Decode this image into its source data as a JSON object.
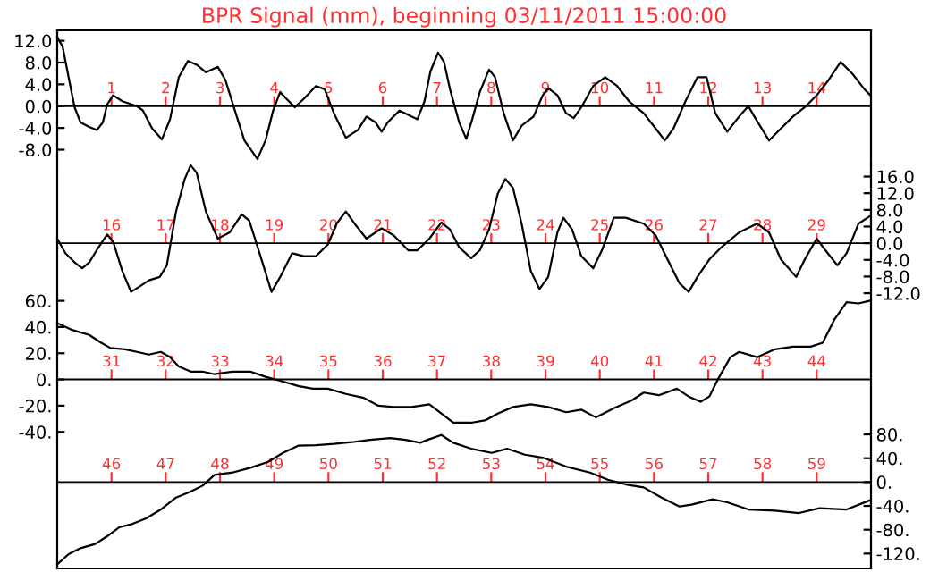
{
  "chart_data": [
    {
      "type": "line",
      "title": "BPR Signal (mm), beginning 03/11/2011 15:00:00",
      "xlim": [
        0,
        15
      ],
      "xticks": [
        1,
        2,
        3,
        4,
        5,
        6,
        7,
        8,
        9,
        10,
        11,
        12,
        13,
        14
      ],
      "ylim": [
        -10.7,
        13.9
      ],
      "yticks": [
        {
          "value": 12,
          "label": "12.0"
        },
        {
          "value": 8,
          "label": "8.0"
        },
        {
          "value": 4,
          "label": "4.0"
        },
        {
          "value": 0,
          "label": "0.0"
        },
        {
          "value": -4,
          "label": "-4.0"
        },
        {
          "value": -8,
          "label": "-8.0"
        }
      ],
      "series": [
        {
          "color": "#000000",
          "x": [
            0,
            0.1,
            0.21,
            0.32,
            0.43,
            0.59,
            0.73,
            0.84,
            0.92,
            1.03,
            1.2,
            1.47,
            1.58,
            1.75,
            1.93,
            2.08,
            2.24,
            2.41,
            2.57,
            2.74,
            2.96,
            3.1,
            3.29,
            3.45,
            3.69,
            3.84,
            3.98,
            4.11,
            4.22,
            4.38,
            4.55,
            4.77,
            4.93,
            5.1,
            5.32,
            5.54,
            5.7,
            5.87,
            5.98,
            6.09,
            6.31,
            6.53,
            6.64,
            6.77,
            6.88,
            7.02,
            7.13,
            7.24,
            7.41,
            7.54,
            7.65,
            7.79,
            7.96,
            8.07,
            8.23,
            8.4,
            8.56,
            8.78,
            8.95,
            9.05,
            9.22,
            9.38,
            9.52,
            9.66,
            9.88,
            10.1,
            10.32,
            10.54,
            10.81,
            11.03,
            11.2,
            11.36,
            11.58,
            11.8,
            11.97,
            12.13,
            12.35,
            12.57,
            12.74,
            12.85,
            13.12,
            13.34,
            13.56,
            13.78,
            14.0,
            14.22,
            14.44,
            14.66,
            14.88,
            14.99
          ],
          "values": [
            12.7,
            10.9,
            5.3,
            -0.2,
            -3,
            -3.8,
            -4.4,
            -3,
            0.3,
            2,
            0.9,
            0,
            -0.8,
            -4.1,
            -6.1,
            -2.4,
            5.3,
            8.3,
            7.6,
            6.2,
            7.2,
            4.8,
            -1.3,
            -6.3,
            -9.7,
            -6.3,
            -0.8,
            2.6,
            1.4,
            -0.2,
            1.4,
            3.7,
            3.1,
            -1.3,
            -5.8,
            -4.4,
            -1.9,
            -3,
            -4.7,
            -3,
            -0.8,
            -1.9,
            -2.4,
            0.9,
            6.4,
            9.8,
            8.1,
            3.1,
            -3,
            -6,
            -2.4,
            2.6,
            6.7,
            5.3,
            -1.3,
            -6.3,
            -3.6,
            -1.9,
            2,
            3.3,
            2,
            -1.3,
            -2.2,
            -0.2,
            3.7,
            5.3,
            3.7,
            0.9,
            -1.3,
            -4.1,
            -6.3,
            -4.1,
            0.9,
            5.3,
            5.3,
            -1.3,
            -4.7,
            -1.9,
            0,
            -1.9,
            -6.3,
            -4.1,
            -1.9,
            -0.2,
            2,
            4.8,
            8.1,
            5.9,
            3.1,
            2
          ]
        }
      ]
    },
    {
      "type": "line",
      "xlim": [
        15,
        30
      ],
      "xticks": [
        16,
        17,
        18,
        19,
        20,
        21,
        22,
        23,
        24,
        25,
        26,
        27,
        28,
        29
      ],
      "y2lim": [
        -13.7,
        18.9
      ],
      "y2ticks": [
        {
          "value": 16,
          "label": "16.0"
        },
        {
          "value": 12,
          "label": "12.0"
        },
        {
          "value": 8,
          "label": "8.0"
        },
        {
          "value": 4,
          "label": "4.0"
        },
        {
          "value": 0,
          "label": "0.0"
        },
        {
          "value": -4,
          "label": "-4.0"
        },
        {
          "value": -8,
          "label": "-8.0"
        },
        {
          "value": -12,
          "label": "-12.0"
        }
      ],
      "series": [
        {
          "color": "#000000",
          "axis": "y2",
          "x": [
            15,
            15.15,
            15.32,
            15.46,
            15.59,
            15.76,
            15.92,
            16.03,
            16.2,
            16.36,
            16.53,
            16.69,
            16.89,
            17.02,
            17.19,
            17.35,
            17.46,
            17.57,
            17.74,
            17.96,
            18.18,
            18.4,
            18.54,
            18.73,
            18.95,
            19.11,
            19.33,
            19.55,
            19.77,
            19.99,
            20.15,
            20.32,
            20.48,
            20.7,
            20.98,
            21.2,
            21.47,
            21.64,
            21.86,
            22.08,
            22.24,
            22.41,
            22.63,
            22.79,
            22.96,
            23.12,
            23.26,
            23.4,
            23.56,
            23.73,
            23.89,
            24.05,
            24.22,
            24.33,
            24.49,
            24.66,
            24.88,
            25.04,
            25.26,
            25.48,
            25.81,
            26.03,
            26.25,
            26.47,
            26.64,
            26.8,
            27.02,
            27.24,
            27.57,
            27.9,
            28.12,
            28.34,
            28.62,
            28.78,
            29.0,
            29.16,
            29.38,
            29.55,
            29.77,
            29.97
          ],
          "values": [
            1.1,
            -2.4,
            -4.6,
            -6,
            -4.6,
            -1,
            2.1,
            0.4,
            -6.7,
            -11.7,
            -10.3,
            -8.9,
            -8.1,
            -5.3,
            7.6,
            15.4,
            18.7,
            16.9,
            7.6,
            1.1,
            2.6,
            6.9,
            5.4,
            -2.4,
            -11.7,
            -8.1,
            -2.4,
            -3.1,
            -3.1,
            -0.3,
            4.7,
            7.6,
            4.7,
            1.1,
            3.6,
            1.9,
            -1.7,
            -1.7,
            1.1,
            5,
            3.3,
            -1,
            -3.6,
            -1.7,
            3.3,
            11.9,
            15.4,
            13.3,
            4.7,
            -6.7,
            -11,
            -8.1,
            2.6,
            6.1,
            3.3,
            -3.1,
            -6,
            -1.7,
            6.1,
            6.1,
            4.7,
            1.9,
            -3.9,
            -9.6,
            -11.7,
            -8.1,
            -3.9,
            -1,
            2.6,
            4.7,
            2.6,
            -3.9,
            -8.1,
            -3.9,
            1.1,
            -1.7,
            -5.3,
            -2.4,
            4.7,
            6.4
          ]
        }
      ]
    },
    {
      "type": "line",
      "xlim": [
        30,
        45
      ],
      "xticks": [
        31,
        32,
        33,
        34,
        35,
        36,
        37,
        38,
        39,
        40,
        41,
        42,
        43,
        44
      ],
      "ylim": [
        -41.2,
        60.4
      ],
      "yticks": [
        {
          "value": 60,
          "label": "60."
        },
        {
          "value": 40,
          "label": "40."
        },
        {
          "value": 20,
          "label": "20."
        },
        {
          "value": 0,
          "label": "0."
        },
        {
          "value": -20,
          "label": "-20."
        },
        {
          "value": -40,
          "label": "-40."
        }
      ],
      "series": [
        {
          "color": "#000000",
          "x": [
            30,
            30.26,
            30.59,
            30.81,
            30.98,
            31.25,
            31.47,
            31.69,
            31.91,
            32.08,
            32.24,
            32.46,
            32.68,
            32.9,
            33.23,
            33.56,
            33.84,
            34.11,
            34.44,
            34.71,
            34.99,
            35.32,
            35.65,
            35.92,
            36.2,
            36.53,
            36.86,
            37.08,
            37.3,
            37.63,
            37.9,
            38.12,
            38.4,
            38.73,
            39.05,
            39.38,
            39.66,
            39.93,
            40.26,
            40.59,
            40.81,
            41.09,
            41.42,
            41.64,
            41.86,
            42.02,
            42.19,
            42.41,
            42.57,
            42.9,
            43.23,
            43.56,
            43.89,
            44.11,
            44.33,
            44.55,
            44.77,
            44.97
          ],
          "values": [
            43,
            38,
            34,
            28,
            24,
            23,
            21,
            19,
            21,
            17,
            10,
            6,
            6,
            4,
            6,
            6,
            2,
            -1,
            -5,
            -7,
            -7,
            -11,
            -14,
            -20,
            -21,
            -21,
            -19,
            -26,
            -33,
            -33,
            -31,
            -26,
            -21,
            -19,
            -21,
            -25,
            -23,
            -29,
            -22,
            -16,
            -10,
            -12,
            -7,
            -13,
            -17,
            -13,
            1,
            17,
            21,
            17,
            23,
            25,
            25,
            28,
            46,
            59,
            58,
            60
          ]
        }
      ]
    },
    {
      "type": "line",
      "xlim": [
        45,
        60
      ],
      "xticks": [
        46,
        47,
        48,
        49,
        50,
        51,
        52,
        53,
        54,
        55,
        56,
        57,
        58,
        59
      ],
      "y2lim": [
        -145,
        81.6
      ],
      "y2ticks": [
        {
          "value": 80,
          "label": "80."
        },
        {
          "value": 40,
          "label": "40."
        },
        {
          "value": 0,
          "label": "0."
        },
        {
          "value": -40,
          "label": "-40."
        },
        {
          "value": -80,
          "label": "-80."
        },
        {
          "value": -120,
          "label": "-120."
        }
      ],
      "series": [
        {
          "color": "#000000",
          "axis": "y2",
          "x": [
            45,
            45.21,
            45.43,
            45.7,
            45.92,
            46.14,
            46.36,
            46.64,
            46.91,
            47.19,
            47.46,
            47.68,
            47.9,
            48.23,
            48.56,
            48.89,
            49.16,
            49.44,
            49.77,
            50.1,
            50.43,
            50.76,
            51.14,
            51.42,
            51.69,
            51.86,
            52.08,
            52.3,
            52.63,
            53.01,
            53.29,
            53.62,
            53.95,
            54.38,
            54.82,
            55.15,
            55.48,
            55.81,
            56.14,
            56.47,
            56.69,
            57.08,
            57.35,
            57.74,
            58.23,
            58.67,
            59.05,
            59.55,
            59.97
          ],
          "values": [
            -138,
            -121,
            -111,
            -104,
            -91,
            -76,
            -71,
            -61,
            -46,
            -26,
            -16,
            -6,
            12,
            16,
            24,
            34,
            49,
            61,
            62,
            64,
            67,
            71,
            74,
            71,
            66,
            72,
            79,
            66,
            56,
            49,
            56,
            46,
            41,
            26,
            16,
            4,
            -4,
            -9,
            -26,
            -41,
            -38,
            -29,
            -34,
            -46,
            -48,
            -52,
            -44,
            -46,
            -31
          ]
        }
      ]
    }
  ]
}
